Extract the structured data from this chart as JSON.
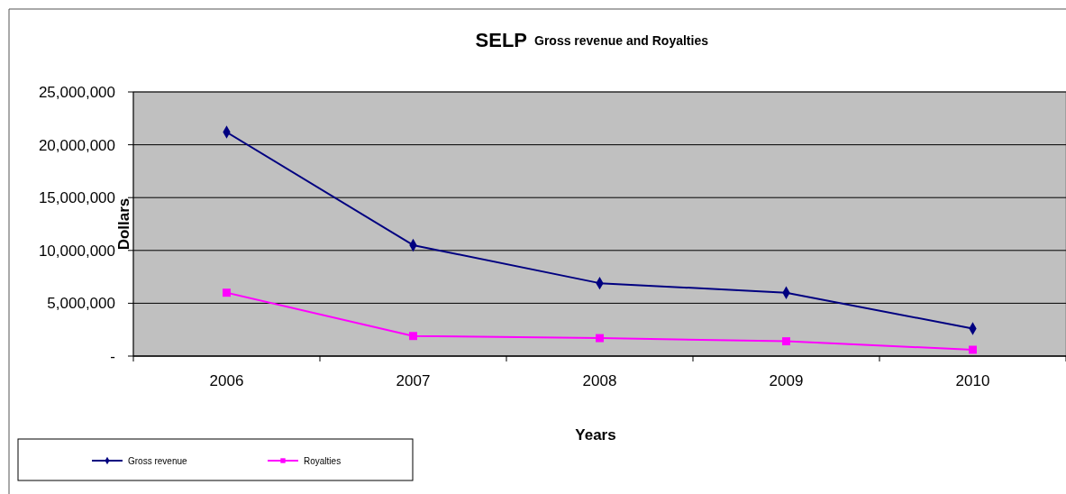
{
  "chart_data": {
    "type": "line",
    "title": "SELP",
    "subtitle": "Gross revenue and Royalties",
    "xlabel": "Years",
    "ylabel": "Dollars",
    "categories": [
      "2006",
      "2007",
      "2008",
      "2009",
      "2010"
    ],
    "series": [
      {
        "name": "Gross revenue",
        "color": "#000080",
        "marker": "diamond",
        "values": [
          21200000,
          10500000,
          6900000,
          6000000,
          2600000
        ]
      },
      {
        "name": "Royalties",
        "color": "#ff00ff",
        "marker": "square",
        "values": [
          6000000,
          1900000,
          1700000,
          1400000,
          600000
        ]
      }
    ],
    "ylim": [
      0,
      25000000
    ],
    "yticks": [
      {
        "value": 0,
        "label": "-"
      },
      {
        "value": 5000000,
        "label": "5,000,000"
      },
      {
        "value": 10000000,
        "label": "10,000,000"
      },
      {
        "value": 15000000,
        "label": "15,000,000"
      },
      {
        "value": 20000000,
        "label": "20,000,000"
      },
      {
        "value": 25000000,
        "label": "25,000,000"
      }
    ],
    "grid": "y",
    "legend": "bottom left",
    "line_style": "solid"
  }
}
